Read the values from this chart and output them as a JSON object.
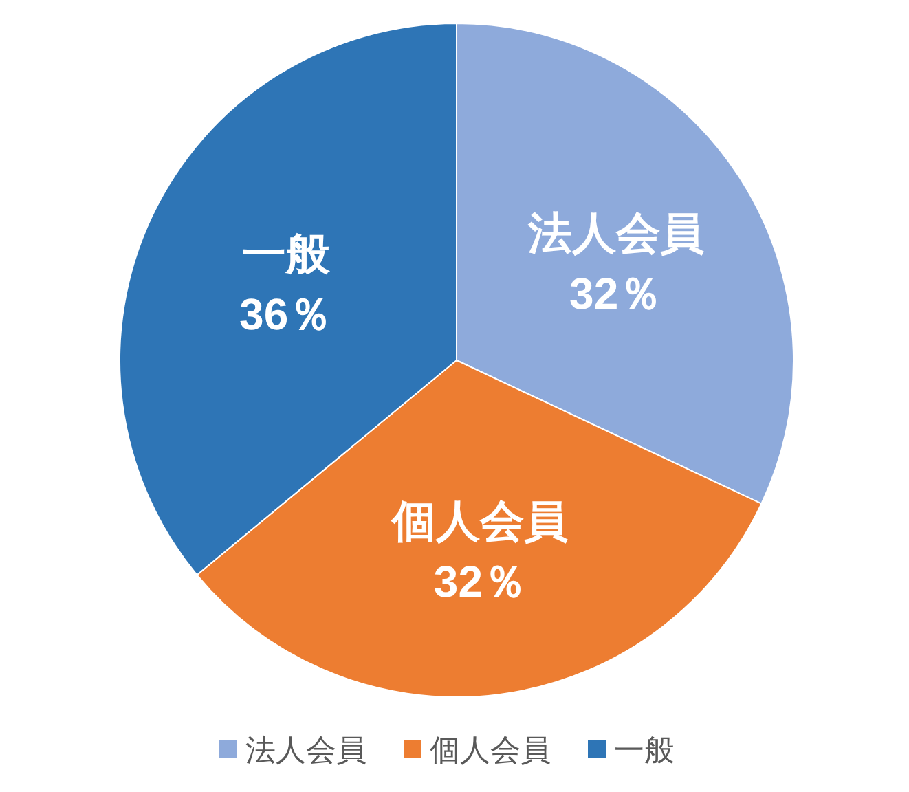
{
  "chart_data": {
    "type": "pie",
    "categories": [
      "法人会員",
      "個人会員",
      "一般"
    ],
    "values": [
      32,
      32,
      36
    ],
    "colors": [
      "#8eaadb",
      "#ed7d31",
      "#2e75b6"
    ],
    "value_labels": [
      "32％",
      "32％",
      "36％"
    ],
    "legend": "bottom"
  }
}
